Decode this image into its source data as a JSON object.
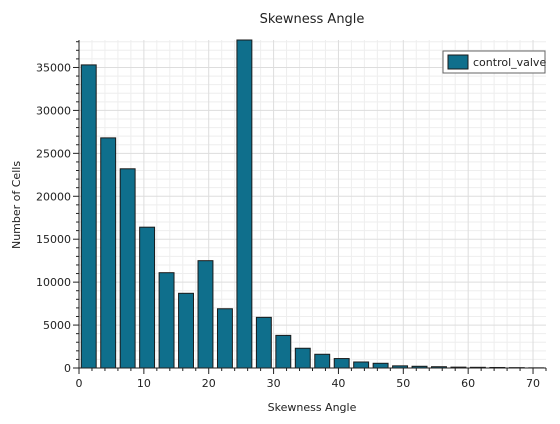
{
  "chart_data": {
    "type": "bar",
    "title": "Skewness Angle",
    "xlabel": "Skewness Angle",
    "ylabel": "Number of Cells",
    "xlim": [
      0,
      72
    ],
    "ylim": [
      0,
      38200
    ],
    "grid": true,
    "legend_position": "top-right",
    "bar_color": "#0f6f8c",
    "x_ticks": [
      0,
      10,
      20,
      30,
      40,
      50,
      60,
      70
    ],
    "y_ticks": [
      0,
      5000,
      10000,
      15000,
      20000,
      25000,
      30000,
      35000
    ],
    "x_tick_labels": [
      "0",
      "10",
      "20",
      "30",
      "40",
      "50",
      "60",
      "70"
    ],
    "y_tick_labels": [
      "0",
      "5000",
      "10000",
      "15000",
      "20000",
      "25000",
      "30000",
      "35000"
    ],
    "series": [
      {
        "name": "control_valve",
        "x": [
          1.5,
          4.5,
          7.5,
          10.5,
          13.5,
          16.5,
          19.5,
          22.5,
          25.5,
          28.5,
          31.5,
          34.5,
          37.5,
          40.5,
          43.5,
          46.5,
          49.5,
          52.5,
          55.5,
          58.5,
          61.5,
          64.5,
          67.5,
          70.5
        ],
        "values": [
          35300,
          26800,
          23200,
          16400,
          11100,
          8700,
          12500,
          6900,
          38200,
          5900,
          3800,
          2300,
          1600,
          1100,
          700,
          550,
          250,
          200,
          150,
          100,
          80,
          60,
          40,
          20
        ]
      }
    ]
  }
}
